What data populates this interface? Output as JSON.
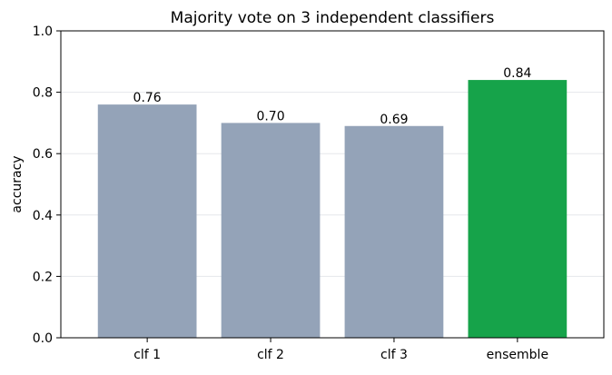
{
  "chart_data": {
    "type": "bar",
    "title": "Majority vote on 3 independent classifiers",
    "xlabel": "",
    "ylabel": "accuracy",
    "categories": [
      "clf 1",
      "clf 2",
      "clf 3",
      "ensemble"
    ],
    "values": [
      0.76,
      0.7,
      0.69,
      0.84
    ],
    "data_labels": [
      "0.76",
      "0.70",
      "0.69",
      "0.84"
    ],
    "ylim": [
      0,
      1.0
    ],
    "yticks": [
      0.0,
      0.2,
      0.4,
      0.6,
      0.8,
      1.0
    ],
    "ytick_labels": [
      "0.0",
      "0.2",
      "0.4",
      "0.6",
      "0.8",
      "1.0"
    ],
    "grid": "horizontal, light",
    "legend": "none",
    "colors": [
      "#94a3b8",
      "#94a3b8",
      "#94a3b8",
      "#16a34a"
    ]
  }
}
